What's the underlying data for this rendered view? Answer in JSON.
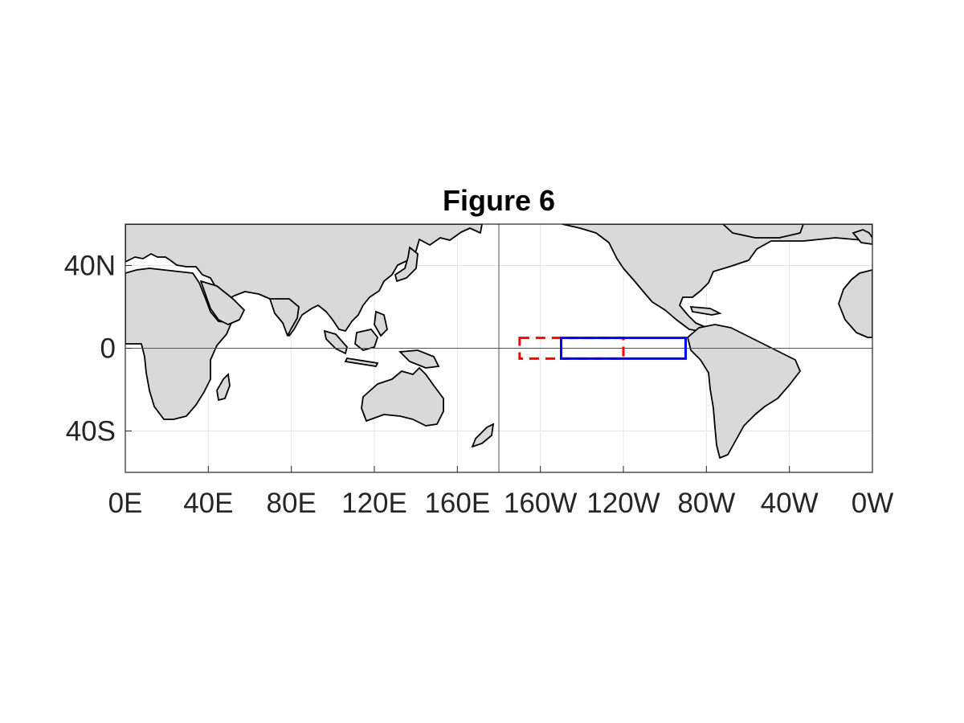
{
  "title": "Figure 6",
  "x_ticks": [
    "0E",
    "40E",
    "80E",
    "120E",
    "160E",
    "160W",
    "120W",
    "80W",
    "40W",
    "0W"
  ],
  "y_ticks": [
    "40N",
    "0",
    "40S"
  ],
  "map": {
    "projection": "equirectangular, Pacific-centred",
    "lon_range_deg_east": [
      0,
      360
    ],
    "lat_range": [
      -60,
      60
    ],
    "grid": true,
    "land_color": "#d9d9d9",
    "coastline_color": "#000000",
    "reference_lines": [
      {
        "type": "equator",
        "lat": 0
      },
      {
        "type": "meridian",
        "lon_deg_east": 180
      }
    ]
  },
  "regions": [
    {
      "id": "red-dashed-box",
      "color": "#ff0000",
      "style": "dashed",
      "lon_deg_east": [
        190,
        240
      ],
      "lat": [
        -5,
        5
      ]
    },
    {
      "id": "blue-solid-box",
      "color": "#0000ff",
      "style": "solid",
      "lon_deg_east": [
        210,
        270
      ],
      "lat": [
        -5,
        5
      ]
    }
  ]
}
